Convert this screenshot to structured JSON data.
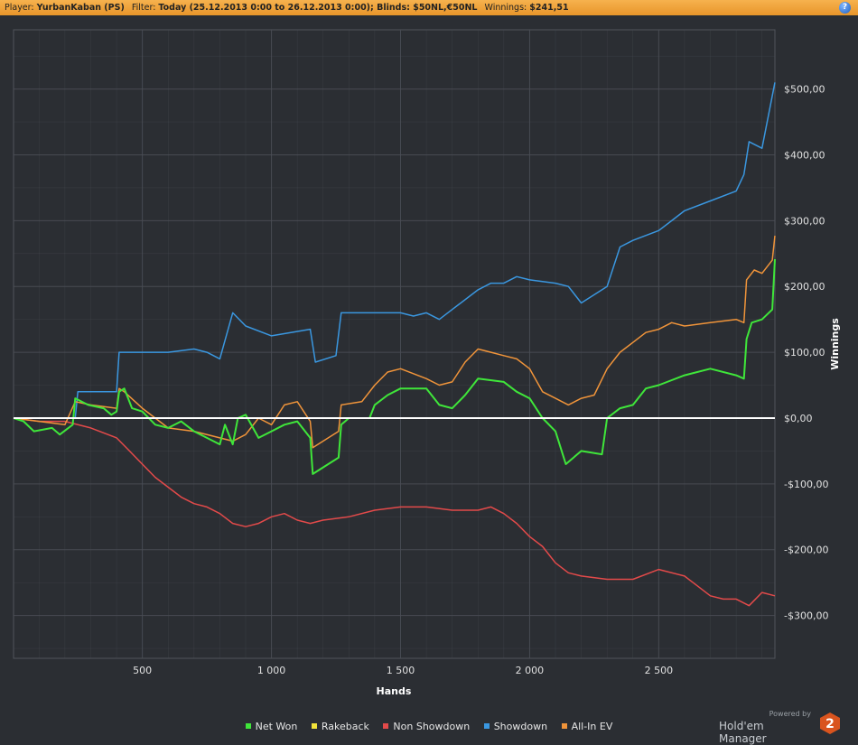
{
  "header": {
    "player_label": "Player:",
    "player_value": "YurbanKaban (PS)",
    "filter_label": "Filter:",
    "filter_value": "Today (25.12.2013 0:00 to 26.12.2013 0:00); Blinds: $50NL,€50NL",
    "winnings_label": "Winnings:",
    "winnings_value": "$241,51",
    "help_glyph": "?"
  },
  "branding": {
    "powered": "Powered by",
    "name": "Hold'em Manager",
    "logo_text": "2"
  },
  "colors": {
    "background": "#2b2e33",
    "grid": "#4a4e55",
    "zero_line": "#ffffff",
    "net_won": "#3fe63a",
    "rakeback": "#f2e33a",
    "non_showdown": "#e34a4a",
    "showdown": "#3a97e0",
    "allin_ev": "#f0943a"
  },
  "chart_data": {
    "type": "line",
    "title": "",
    "xlabel": "Hands",
    "ylabel": "Winnings",
    "xlim": [
      1,
      2950
    ],
    "ylim": [
      -365,
      590
    ],
    "grid": true,
    "legend_position": "bottom",
    "x_ticks": [
      500,
      1000,
      1500,
      2000,
      2500
    ],
    "x_tick_labels": [
      "500",
      "1 000",
      "1 500",
      "2 000",
      "2 500"
    ],
    "y_ticks": [
      500,
      400,
      300,
      200,
      100,
      0,
      -100,
      -200,
      -300
    ],
    "y_tick_labels": [
      "$500,00",
      "$400,00",
      "$300,00",
      "$200,00",
      "$100,00",
      "$0,00",
      "-$100,00",
      "-$200,00",
      "-$300,00"
    ],
    "series": [
      {
        "name": "Net Won",
        "color_key": "net_won",
        "points": [
          [
            1,
            0
          ],
          [
            40,
            -5
          ],
          [
            80,
            -20
          ],
          [
            150,
            -15
          ],
          [
            180,
            -25
          ],
          [
            230,
            -10
          ],
          [
            240,
            30
          ],
          [
            290,
            20
          ],
          [
            350,
            15
          ],
          [
            380,
            5
          ],
          [
            400,
            10
          ],
          [
            410,
            40
          ],
          [
            430,
            45
          ],
          [
            460,
            15
          ],
          [
            500,
            10
          ],
          [
            550,
            -10
          ],
          [
            600,
            -15
          ],
          [
            650,
            -5
          ],
          [
            700,
            -20
          ],
          [
            750,
            -30
          ],
          [
            800,
            -40
          ],
          [
            820,
            -10
          ],
          [
            850,
            -40
          ],
          [
            870,
            0
          ],
          [
            900,
            5
          ],
          [
            950,
            -30
          ],
          [
            1000,
            -20
          ],
          [
            1050,
            -10
          ],
          [
            1100,
            -5
          ],
          [
            1150,
            -30
          ],
          [
            1160,
            -85
          ],
          [
            1200,
            -75
          ],
          [
            1260,
            -60
          ],
          [
            1270,
            -10
          ],
          [
            1300,
            0
          ],
          [
            1380,
            0
          ],
          [
            1400,
            20
          ],
          [
            1450,
            35
          ],
          [
            1500,
            45
          ],
          [
            1600,
            45
          ],
          [
            1650,
            20
          ],
          [
            1700,
            15
          ],
          [
            1750,
            35
          ],
          [
            1800,
            60
          ],
          [
            1900,
            55
          ],
          [
            1950,
            40
          ],
          [
            2000,
            30
          ],
          [
            2050,
            0
          ],
          [
            2100,
            -20
          ],
          [
            2140,
            -70
          ],
          [
            2200,
            -50
          ],
          [
            2280,
            -55
          ],
          [
            2300,
            0
          ],
          [
            2350,
            15
          ],
          [
            2400,
            20
          ],
          [
            2450,
            45
          ],
          [
            2500,
            50
          ],
          [
            2600,
            65
          ],
          [
            2700,
            75
          ],
          [
            2800,
            65
          ],
          [
            2830,
            60
          ],
          [
            2840,
            120
          ],
          [
            2860,
            145
          ],
          [
            2900,
            150
          ],
          [
            2940,
            165
          ],
          [
            2950,
            241.51
          ]
        ]
      },
      {
        "name": "Rakeback",
        "color_key": "rakeback",
        "points": [
          [
            1,
            0
          ],
          [
            2950,
            0
          ]
        ]
      },
      {
        "name": "Non Showdown",
        "color_key": "non_showdown",
        "points": [
          [
            1,
            0
          ],
          [
            100,
            -5
          ],
          [
            200,
            -5
          ],
          [
            300,
            -15
          ],
          [
            400,
            -30
          ],
          [
            450,
            -50
          ],
          [
            500,
            -70
          ],
          [
            550,
            -90
          ],
          [
            600,
            -105
          ],
          [
            650,
            -120
          ],
          [
            700,
            -130
          ],
          [
            750,
            -135
          ],
          [
            800,
            -145
          ],
          [
            850,
            -160
          ],
          [
            900,
            -165
          ],
          [
            950,
            -160
          ],
          [
            1000,
            -150
          ],
          [
            1050,
            -145
          ],
          [
            1100,
            -155
          ],
          [
            1150,
            -160
          ],
          [
            1200,
            -155
          ],
          [
            1300,
            -150
          ],
          [
            1400,
            -140
          ],
          [
            1500,
            -135
          ],
          [
            1600,
            -135
          ],
          [
            1700,
            -140
          ],
          [
            1800,
            -140
          ],
          [
            1850,
            -135
          ],
          [
            1900,
            -145
          ],
          [
            1950,
            -160
          ],
          [
            2000,
            -180
          ],
          [
            2050,
            -195
          ],
          [
            2100,
            -220
          ],
          [
            2150,
            -235
          ],
          [
            2200,
            -240
          ],
          [
            2300,
            -245
          ],
          [
            2400,
            -245
          ],
          [
            2500,
            -230
          ],
          [
            2600,
            -240
          ],
          [
            2650,
            -255
          ],
          [
            2700,
            -270
          ],
          [
            2750,
            -275
          ],
          [
            2800,
            -275
          ],
          [
            2850,
            -285
          ],
          [
            2900,
            -265
          ],
          [
            2950,
            -270
          ]
        ]
      },
      {
        "name": "Showdown",
        "color_key": "showdown",
        "points": [
          [
            1,
            0
          ],
          [
            240,
            0
          ],
          [
            250,
            40
          ],
          [
            400,
            40
          ],
          [
            410,
            100
          ],
          [
            600,
            100
          ],
          [
            700,
            105
          ],
          [
            750,
            100
          ],
          [
            800,
            90
          ],
          [
            850,
            160
          ],
          [
            900,
            140
          ],
          [
            1000,
            125
          ],
          [
            1150,
            135
          ],
          [
            1170,
            85
          ],
          [
            1250,
            95
          ],
          [
            1270,
            160
          ],
          [
            1500,
            160
          ],
          [
            1550,
            155
          ],
          [
            1600,
            160
          ],
          [
            1650,
            150
          ],
          [
            1700,
            165
          ],
          [
            1800,
            195
          ],
          [
            1850,
            205
          ],
          [
            1900,
            205
          ],
          [
            1950,
            215
          ],
          [
            2000,
            210
          ],
          [
            2100,
            205
          ],
          [
            2150,
            200
          ],
          [
            2200,
            175
          ],
          [
            2300,
            200
          ],
          [
            2350,
            260
          ],
          [
            2400,
            270
          ],
          [
            2500,
            285
          ],
          [
            2550,
            300
          ],
          [
            2600,
            315
          ],
          [
            2700,
            330
          ],
          [
            2800,
            345
          ],
          [
            2830,
            370
          ],
          [
            2850,
            420
          ],
          [
            2900,
            410
          ],
          [
            2950,
            510
          ]
        ]
      },
      {
        "name": "All-In EV",
        "color_key": "allin_ev",
        "points": [
          [
            1,
            0
          ],
          [
            100,
            -5
          ],
          [
            200,
            -10
          ],
          [
            240,
            25
          ],
          [
            300,
            20
          ],
          [
            400,
            15
          ],
          [
            410,
            45
          ],
          [
            430,
            40
          ],
          [
            500,
            15
          ],
          [
            600,
            -15
          ],
          [
            700,
            -20
          ],
          [
            800,
            -30
          ],
          [
            850,
            -35
          ],
          [
            900,
            -25
          ],
          [
            950,
            0
          ],
          [
            1000,
            -10
          ],
          [
            1050,
            20
          ],
          [
            1100,
            25
          ],
          [
            1150,
            -5
          ],
          [
            1160,
            -45
          ],
          [
            1200,
            -35
          ],
          [
            1260,
            -20
          ],
          [
            1270,
            20
          ],
          [
            1350,
            25
          ],
          [
            1400,
            50
          ],
          [
            1450,
            70
          ],
          [
            1500,
            75
          ],
          [
            1600,
            60
          ],
          [
            1650,
            50
          ],
          [
            1700,
            55
          ],
          [
            1750,
            85
          ],
          [
            1800,
            105
          ],
          [
            1850,
            100
          ],
          [
            1900,
            95
          ],
          [
            1950,
            90
          ],
          [
            2000,
            75
          ],
          [
            2050,
            40
          ],
          [
            2100,
            30
          ],
          [
            2150,
            20
          ],
          [
            2200,
            30
          ],
          [
            2250,
            35
          ],
          [
            2300,
            75
          ],
          [
            2350,
            100
          ],
          [
            2400,
            115
          ],
          [
            2450,
            130
          ],
          [
            2500,
            135
          ],
          [
            2550,
            145
          ],
          [
            2600,
            140
          ],
          [
            2700,
            145
          ],
          [
            2800,
            150
          ],
          [
            2830,
            145
          ],
          [
            2840,
            210
          ],
          [
            2870,
            225
          ],
          [
            2900,
            220
          ],
          [
            2940,
            240
          ],
          [
            2950,
            277
          ]
        ]
      }
    ]
  }
}
